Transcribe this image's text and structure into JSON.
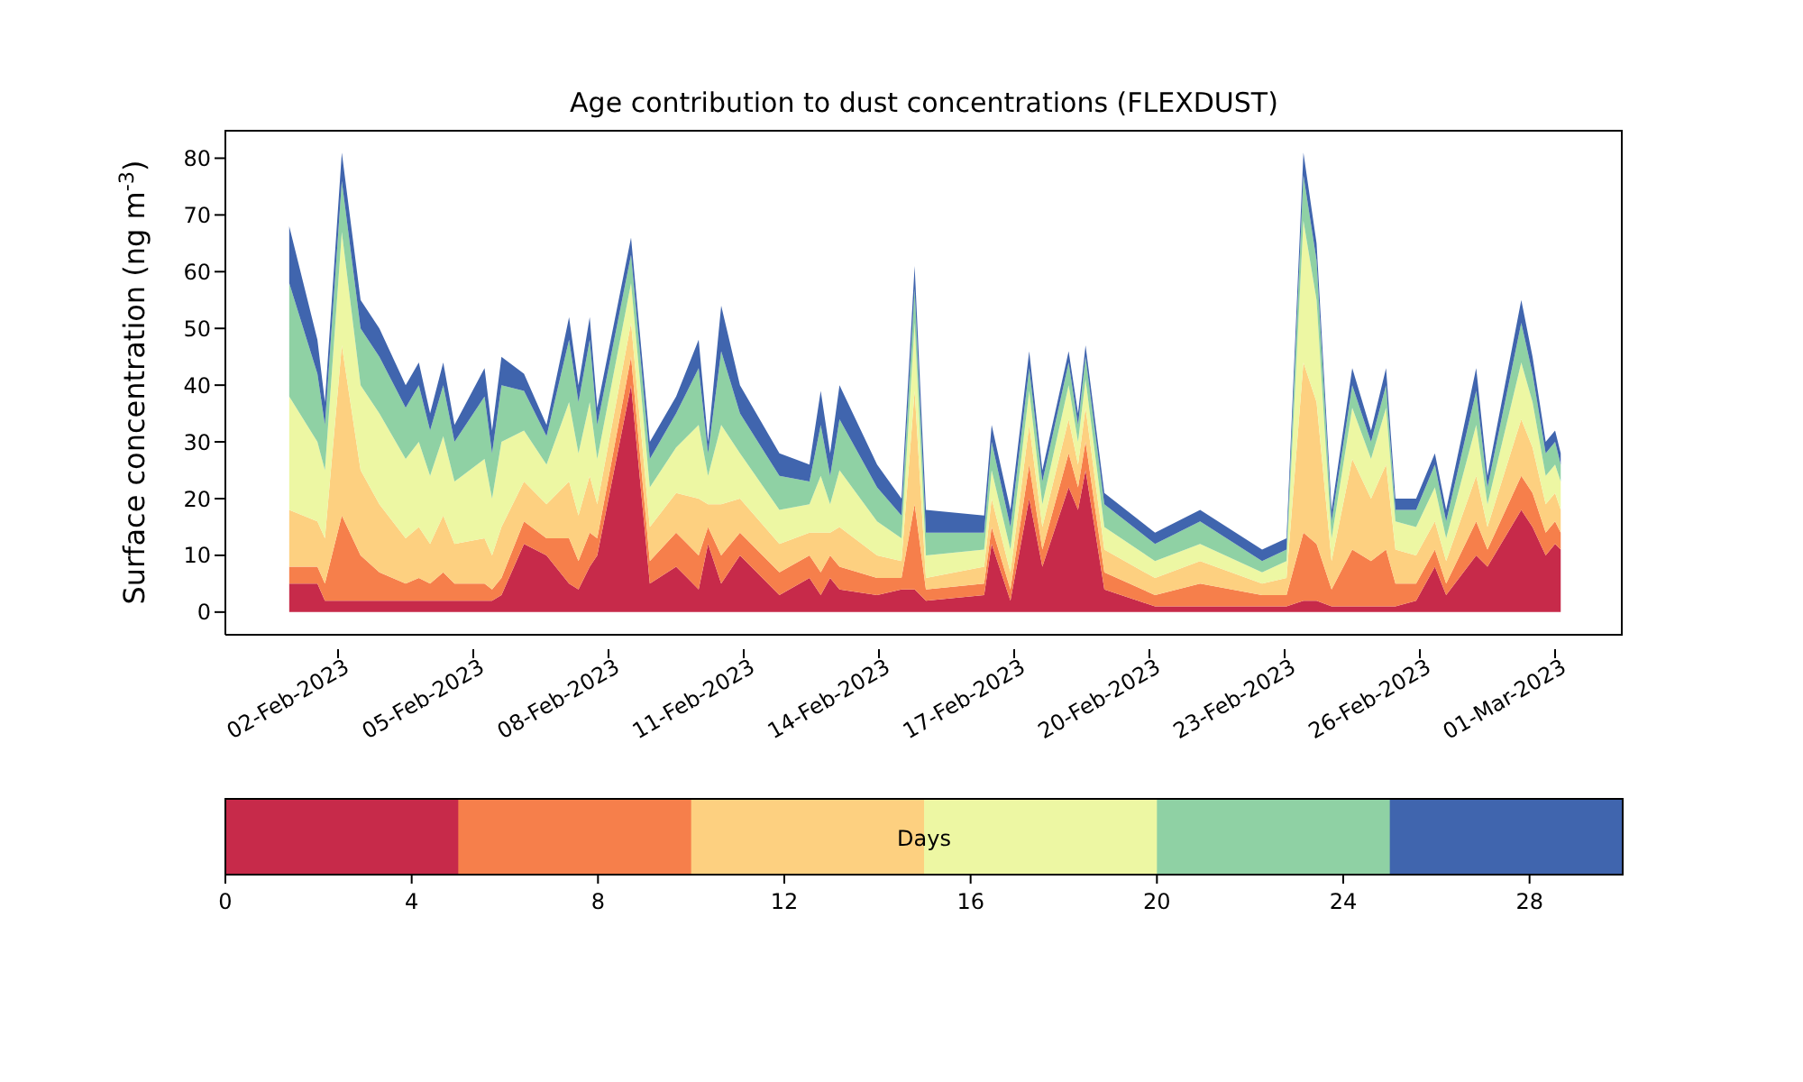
{
  "chart_data": {
    "type": "area",
    "stacked": true,
    "title": "Age contribution to dust concentrations (FLEXDUST)",
    "ylabel": "Surface concentration (ng m$^{-3}$)",
    "clabel": "Days",
    "clim": [
      0,
      30
    ],
    "cticks": [
      0,
      4,
      8,
      12,
      16,
      20,
      24,
      28
    ],
    "x": [
      "2023-01-31T22:00",
      "2023-02-01T13:00",
      "2023-02-01T17:00",
      "2023-02-02T02:00",
      "2023-02-02T12:00",
      "2023-02-02T22:00",
      "2023-02-03T12:00",
      "2023-02-03T19:00",
      "2023-02-04T01:00",
      "2023-02-04T08:00",
      "2023-02-04T14:00",
      "2023-02-05T06:00",
      "2023-02-05T10:00",
      "2023-02-05T15:00",
      "2023-02-06T03:00",
      "2023-02-06T15:00",
      "2023-02-07T03:00",
      "2023-02-07T08:00",
      "2023-02-07T14:00",
      "2023-02-07T18:00",
      "2023-02-08T12:00",
      "2023-02-08T22:00",
      "2023-02-09T12:00",
      "2023-02-10T00:00",
      "2023-02-10T05:00",
      "2023-02-10T12:00",
      "2023-02-10T22:00",
      "2023-02-11T19:00",
      "2023-02-12T11:00",
      "2023-02-12T17:00",
      "2023-02-12T22:00",
      "2023-02-13T03:00",
      "2023-02-13T23:00",
      "2023-02-14T12:00",
      "2023-02-14T19:00",
      "2023-02-15T01:00",
      "2023-02-16T08:00",
      "2023-02-16T12:00",
      "2023-02-16T22:00",
      "2023-02-17T08:00",
      "2023-02-17T15:00",
      "2023-02-18T05:00",
      "2023-02-18T10:00",
      "2023-02-18T14:00",
      "2023-02-19T00:00",
      "2023-02-20T03:00",
      "2023-02-21T03:00",
      "2023-02-22T12:00",
      "2023-02-23T01:00",
      "2023-02-23T10:00",
      "2023-02-23T17:00",
      "2023-02-24T01:00",
      "2023-02-24T12:00",
      "2023-02-24T22:00",
      "2023-02-25T06:00",
      "2023-02-25T11:00",
      "2023-02-25T22:00",
      "2023-02-26T08:00",
      "2023-02-26T14:00",
      "2023-02-27T06:00",
      "2023-02-27T12:00",
      "2023-02-28T06:00",
      "2023-02-28T12:00",
      "2023-02-28T19:00",
      "2023-03-01T00:00",
      "2023-03-01T03:00"
    ],
    "xlim": [
      "2023-01-30T12:00",
      "2023-03-02T12:00"
    ],
    "xticks": [
      {
        "value": "2023-02-02",
        "label": "02-Feb-2023"
      },
      {
        "value": "2023-02-05",
        "label": "05-Feb-2023"
      },
      {
        "value": "2023-02-08",
        "label": "08-Feb-2023"
      },
      {
        "value": "2023-02-11",
        "label": "11-Feb-2023"
      },
      {
        "value": "2023-02-14",
        "label": "14-Feb-2023"
      },
      {
        "value": "2023-02-17",
        "label": "17-Feb-2023"
      },
      {
        "value": "2023-02-20",
        "label": "20-Feb-2023"
      },
      {
        "value": "2023-02-23",
        "label": "23-Feb-2023"
      },
      {
        "value": "2023-02-26",
        "label": "26-Feb-2023"
      },
      {
        "value": "2023-03-01",
        "label": "01-Mar-2023"
      }
    ],
    "ylim": [
      -4,
      85
    ],
    "yticks": [
      0,
      10,
      20,
      30,
      40,
      50,
      60,
      70,
      80
    ],
    "series": [
      {
        "color": "#c72a4a",
        "values": [
          5,
          5,
          2,
          2,
          2,
          2,
          2,
          2,
          2,
          2,
          2,
          2,
          2,
          3,
          12,
          10,
          5,
          4,
          8,
          10,
          40,
          5,
          8,
          4,
          12,
          5,
          10,
          3,
          6,
          3,
          6,
          4,
          3,
          4,
          4,
          2,
          3,
          12,
          2,
          20,
          8,
          22,
          18,
          25,
          4,
          1,
          1,
          1,
          1,
          2,
          2,
          1,
          1,
          1,
          1,
          1,
          2,
          8,
          3,
          10,
          8,
          18,
          15,
          10,
          12,
          11
        ]
      },
      {
        "color": "#f67f4b",
        "values": [
          3,
          3,
          3,
          15,
          8,
          5,
          3,
          4,
          3,
          5,
          3,
          3,
          2,
          3,
          4,
          3,
          8,
          5,
          6,
          3,
          5,
          4,
          6,
          6,
          3,
          5,
          4,
          4,
          4,
          4,
          4,
          4,
          3,
          2,
          15,
          2,
          2,
          3,
          2,
          6,
          3,
          6,
          4,
          5,
          3,
          2,
          4,
          2,
          2,
          12,
          10,
          3,
          10,
          8,
          10,
          4,
          3,
          3,
          2,
          6,
          3,
          6,
          6,
          4,
          4,
          3
        ]
      },
      {
        "color": "#fdd080",
        "values": [
          10,
          8,
          8,
          30,
          15,
          12,
          8,
          9,
          7,
          10,
          7,
          8,
          6,
          9,
          7,
          6,
          10,
          8,
          10,
          6,
          6,
          6,
          7,
          10,
          4,
          9,
          6,
          5,
          4,
          7,
          4,
          7,
          4,
          3,
          20,
          2,
          3,
          5,
          3,
          7,
          4,
          6,
          4,
          6,
          4,
          3,
          4,
          2,
          3,
          30,
          25,
          5,
          16,
          11,
          15,
          6,
          5,
          5,
          4,
          8,
          4,
          10,
          8,
          5,
          5,
          4
        ]
      },
      {
        "color": "#edf7a3",
        "values": [
          20,
          14,
          12,
          20,
          15,
          16,
          14,
          15,
          12,
          14,
          11,
          14,
          10,
          15,
          9,
          7,
          14,
          11,
          13,
          8,
          7,
          7,
          8,
          13,
          5,
          14,
          8,
          6,
          5,
          10,
          5,
          10,
          6,
          4,
          12,
          4,
          3,
          5,
          4,
          6,
          4,
          6,
          4,
          5,
          4,
          3,
          3,
          2,
          3,
          25,
          18,
          4,
          9,
          7,
          10,
          5,
          5,
          6,
          4,
          9,
          4,
          10,
          8,
          5,
          5,
          5
        ]
      },
      {
        "color": "#8fd1a4",
        "values": [
          20,
          12,
          8,
          9,
          10,
          10,
          9,
          10,
          8,
          9,
          7,
          11,
          8,
          10,
          7,
          5,
          11,
          9,
          11,
          6,
          5,
          5,
          6,
          10,
          4,
          13,
          7,
          6,
          4,
          9,
          5,
          9,
          6,
          4,
          6,
          4,
          3,
          5,
          4,
          4,
          4,
          4,
          3,
          4,
          4,
          3,
          4,
          2,
          2,
          8,
          7,
          3,
          4,
          3,
          4,
          2,
          3,
          4,
          3,
          6,
          3,
          7,
          5,
          4,
          4,
          3
        ]
      },
      {
        "color": "#4065ae",
        "values": [
          10,
          6,
          4,
          5,
          5,
          5,
          4,
          4,
          3,
          4,
          3,
          5,
          4,
          5,
          3,
          2,
          4,
          3,
          4,
          3,
          3,
          3,
          3,
          5,
          2,
          8,
          5,
          4,
          3,
          6,
          4,
          6,
          4,
          3,
          4,
          4,
          3,
          3,
          3,
          3,
          2,
          2,
          2,
          2,
          2,
          2,
          2,
          2,
          2,
          4,
          3,
          2,
          3,
          2,
          3,
          2,
          2,
          2,
          2,
          4,
          2,
          4,
          3,
          2,
          2,
          2
        ]
      }
    ]
  }
}
